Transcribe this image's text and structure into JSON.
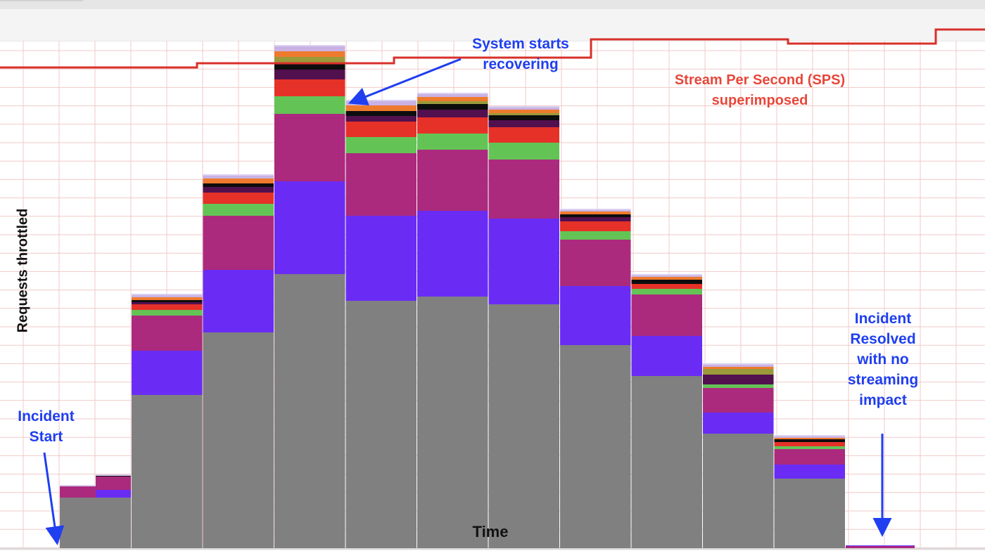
{
  "chart_data": {
    "type": "bar",
    "stacked": true,
    "xlabel": "Time",
    "ylabel": "Requests throttled",
    "grid": true,
    "categories": [
      "",
      "",
      "",
      "",
      "",
      "",
      "",
      "",
      "",
      "",
      "",
      ""
    ],
    "series": [
      {
        "color": "#808080",
        "values": [
          72,
          72,
          218,
          307,
          390,
          352,
          358,
          347,
          289,
          245,
          163,
          99
        ]
      },
      {
        "color": "#6a2cf5",
        "values": [
          0,
          11,
          63,
          89,
          132,
          121,
          122,
          122,
          84,
          57,
          30,
          20
        ]
      },
      {
        "color": "#ab2a7d",
        "values": [
          16,
          19,
          50,
          77,
          96,
          89,
          87,
          84,
          66,
          59,
          35,
          22
        ]
      },
      {
        "color": "#63c455",
        "values": [
          0,
          0,
          8,
          17,
          25,
          23,
          23,
          24,
          12,
          8,
          5,
          4
        ]
      },
      {
        "color": "#e53128",
        "values": [
          0,
          0,
          8,
          16,
          24,
          22,
          23,
          22,
          14,
          7,
          0,
          6
        ]
      },
      {
        "color": "#52104f",
        "values": [
          0,
          0,
          3,
          8,
          14,
          8,
          11,
          10,
          6,
          0,
          14,
          0
        ]
      },
      {
        "color": "#0d0d0d",
        "values": [
          0,
          1,
          3,
          5,
          10,
          7,
          8,
          7,
          4,
          6,
          0,
          4
        ]
      },
      {
        "color": "#9a9a3a",
        "values": [
          0,
          0,
          0,
          0,
          8,
          0,
          4,
          3,
          0,
          0,
          8,
          0
        ]
      },
      {
        "color": "#ee7a2e",
        "values": [
          0,
          0,
          4,
          7,
          8,
          8,
          6,
          5,
          4,
          4,
          3,
          2
        ]
      },
      {
        "color": "#c9b2e3",
        "values": [
          0,
          0,
          3,
          4,
          7,
          6,
          4,
          3,
          2,
          2,
          3,
          2
        ]
      }
    ],
    "resolved_residual": [
      {
        "color": "#ab2a7d",
        "value": 3
      },
      {
        "color": "#6a2cf5",
        "value": 1
      }
    ],
    "sps_line": {
      "name": "Stream Per Second (SPS)",
      "color": "#d8302a",
      "values": [
        96,
        96,
        96,
        96,
        90,
        90,
        90,
        90,
        82,
        82,
        82,
        82,
        56,
        56,
        56,
        56,
        62,
        62,
        62,
        42
      ]
    }
  },
  "annotations": {
    "incident_start": "Incident\nStart",
    "system_recovering": "System starts\nrecovering",
    "sps_label": "Stream Per Second (SPS)\nsuperimposed",
    "incident_resolved": "Incident\nResolved\nwith no\nstreaming\nimpact"
  },
  "colors": {
    "annotation": "#1f3ff0",
    "grid": "#e8a0a0",
    "sps": "#d8302a"
  }
}
